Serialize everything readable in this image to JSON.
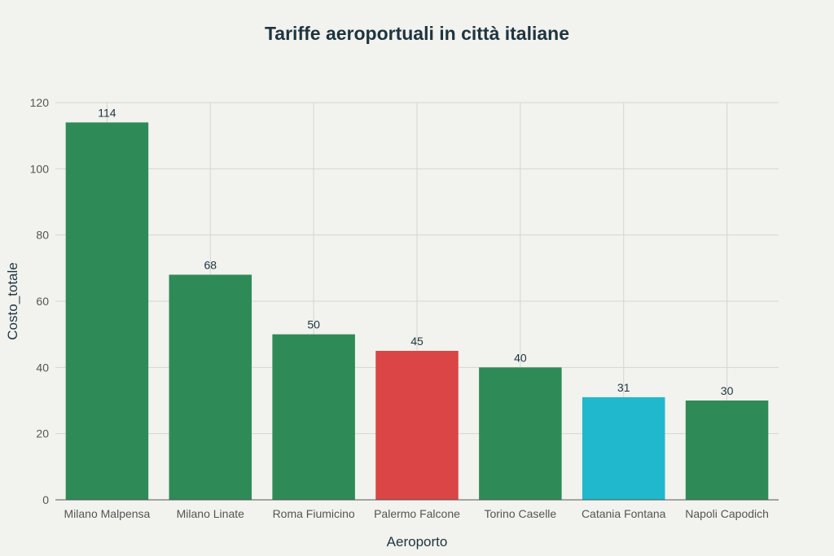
{
  "chart_data": {
    "type": "bar",
    "title": "Tariffe aeroportuali in città italiane",
    "xlabel": "Aeroporto",
    "ylabel": "Costo_totale",
    "categories": [
      "Milano Malpensa",
      "Milano Linate",
      "Roma Fiumicino",
      "Palermo Falcone",
      "Torino Caselle",
      "Catania Fontana",
      "Napoli Capodich"
    ],
    "values": [
      114,
      68,
      50,
      45,
      40,
      31,
      30
    ],
    "colors": [
      "#2e8b57",
      "#2e8b57",
      "#2e8b57",
      "#db4545",
      "#2e8b57",
      "#1fb8cd",
      "#2e8b57"
    ],
    "ylim": [
      0,
      120
    ],
    "yticks": [
      0,
      20,
      40,
      60,
      80,
      100,
      120
    ],
    "grid": true,
    "legend": "none"
  }
}
